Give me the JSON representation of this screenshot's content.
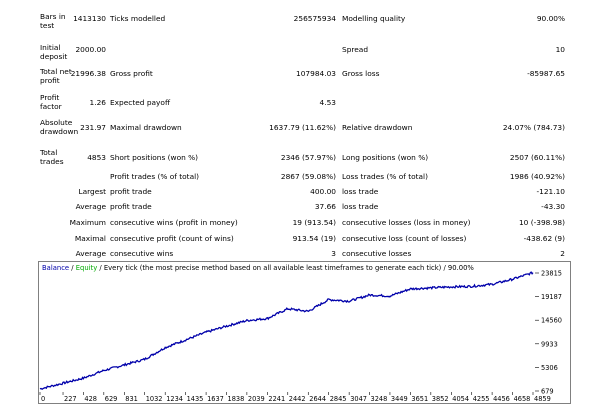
{
  "report": {
    "bars_in_test": {
      "label": "Bars in test",
      "value": "1413130"
    },
    "ticks_modelled": {
      "label": "Ticks modelled",
      "value": "256575934"
    },
    "modelling_quality": {
      "label": "Modelling quality",
      "value": "90.00%"
    },
    "initial_deposit": {
      "label": "Initial deposit",
      "value": "2000.00"
    },
    "spread": {
      "label": "Spread",
      "value": "10"
    },
    "total_net_profit": {
      "label": "Total net profit",
      "value": "21996.38"
    },
    "gross_profit": {
      "label": "Gross profit",
      "value": "107984.03"
    },
    "gross_loss": {
      "label": "Gross loss",
      "value": "-85987.65"
    },
    "profit_factor": {
      "label": "Profit factor",
      "value": "1.26"
    },
    "expected_payoff": {
      "label": "Expected payoff",
      "value": "4.53"
    },
    "absolute_drawdown": {
      "label": "Absolute drawdown",
      "value": "231.97"
    },
    "maximal_drawdown": {
      "label": "Maximal drawdown",
      "value": "1637.79 (11.62%)"
    },
    "relative_drawdown": {
      "label": "Relative drawdown",
      "value": "24.07% (784.73)"
    },
    "total_trades": {
      "label": "Total trades",
      "value": "4853"
    },
    "short_positions": {
      "label": "Short positions (won %)",
      "value": "2346 (57.97%)"
    },
    "long_positions": {
      "label": "Long positions (won %)",
      "value": "2507 (60.11%)"
    },
    "profit_trades": {
      "label": "Profit trades (% of total)",
      "value": "2867 (59.08%)"
    },
    "loss_trades": {
      "label": "Loss trades (% of total)",
      "value": "1986 (40.92%)"
    },
    "largest": {
      "prefix": "Largest",
      "profit_label": "profit trade",
      "profit_value": "400.00",
      "loss_label": "loss trade",
      "loss_value": "-121.10"
    },
    "average": {
      "prefix": "Average",
      "profit_label": "profit trade",
      "profit_value": "37.66",
      "loss_label": "loss trade",
      "loss_value": "-43.30"
    },
    "maximum": {
      "prefix": "Maximum",
      "wins_label": "consecutive wins (profit in money)",
      "wins_value": "19 (913.54)",
      "losses_label": "consecutive losses (loss in money)",
      "losses_value": "10 (-398.98)"
    },
    "maximal": {
      "prefix": "Maximal",
      "profit_label": "consecutive profit (count of wins)",
      "profit_value": "913.54 (19)",
      "loss_label": "consecutive loss (count of losses)",
      "loss_value": "-438.62 (9)"
    },
    "average_consec": {
      "prefix": "Average",
      "wins_label": "consecutive wins",
      "wins_value": "3",
      "losses_label": "consecutive losses",
      "losses_value": "2"
    }
  },
  "chart_legend": {
    "balance": "Balance",
    "sep1": " / ",
    "equity": "Equity",
    "sep2": " / ",
    "rest": "Every tick (the most precise method based on all available least timeframes to generate each tick) / 90.00%",
    "balance_color": "#0000aa",
    "equity_color": "#00aa00"
  },
  "chart_data": {
    "type": "line",
    "series": [
      {
        "name": "Balance",
        "color": "#0000aa"
      }
    ],
    "x": [
      0,
      227,
      428,
      629,
      831,
      1032,
      1234,
      1435,
      1637,
      1838,
      2039,
      2241,
      2442,
      2644,
      2845,
      3047,
      3248,
      3449,
      3651,
      3852,
      4054,
      4255,
      4456,
      4658,
      4859
    ],
    "y": [
      1100,
      2200,
      3200,
      4700,
      5800,
      6900,
      9200,
      10700,
      12200,
      13400,
      14500,
      14900,
      16800,
      16300,
      18600,
      18300,
      19500,
      19300,
      20700,
      20900,
      21100,
      21200,
      21600,
      22600,
      23900
    ],
    "xticks": [
      "0",
      "227",
      "428",
      "629",
      "831",
      "1032",
      "1234",
      "1435",
      "1637",
      "1838",
      "2039",
      "2241",
      "2442",
      "2644",
      "2845",
      "3047",
      "3248",
      "3449",
      "3651",
      "3852",
      "4054",
      "4255",
      "4456",
      "4658",
      "4859"
    ],
    "yticks": [
      "23815",
      "19187",
      "14560",
      "9933",
      "5306",
      "679"
    ],
    "ylim": [
      679,
      23815
    ],
    "xlim": [
      0,
      4859
    ],
    "grid": false,
    "legend": "top-left"
  }
}
